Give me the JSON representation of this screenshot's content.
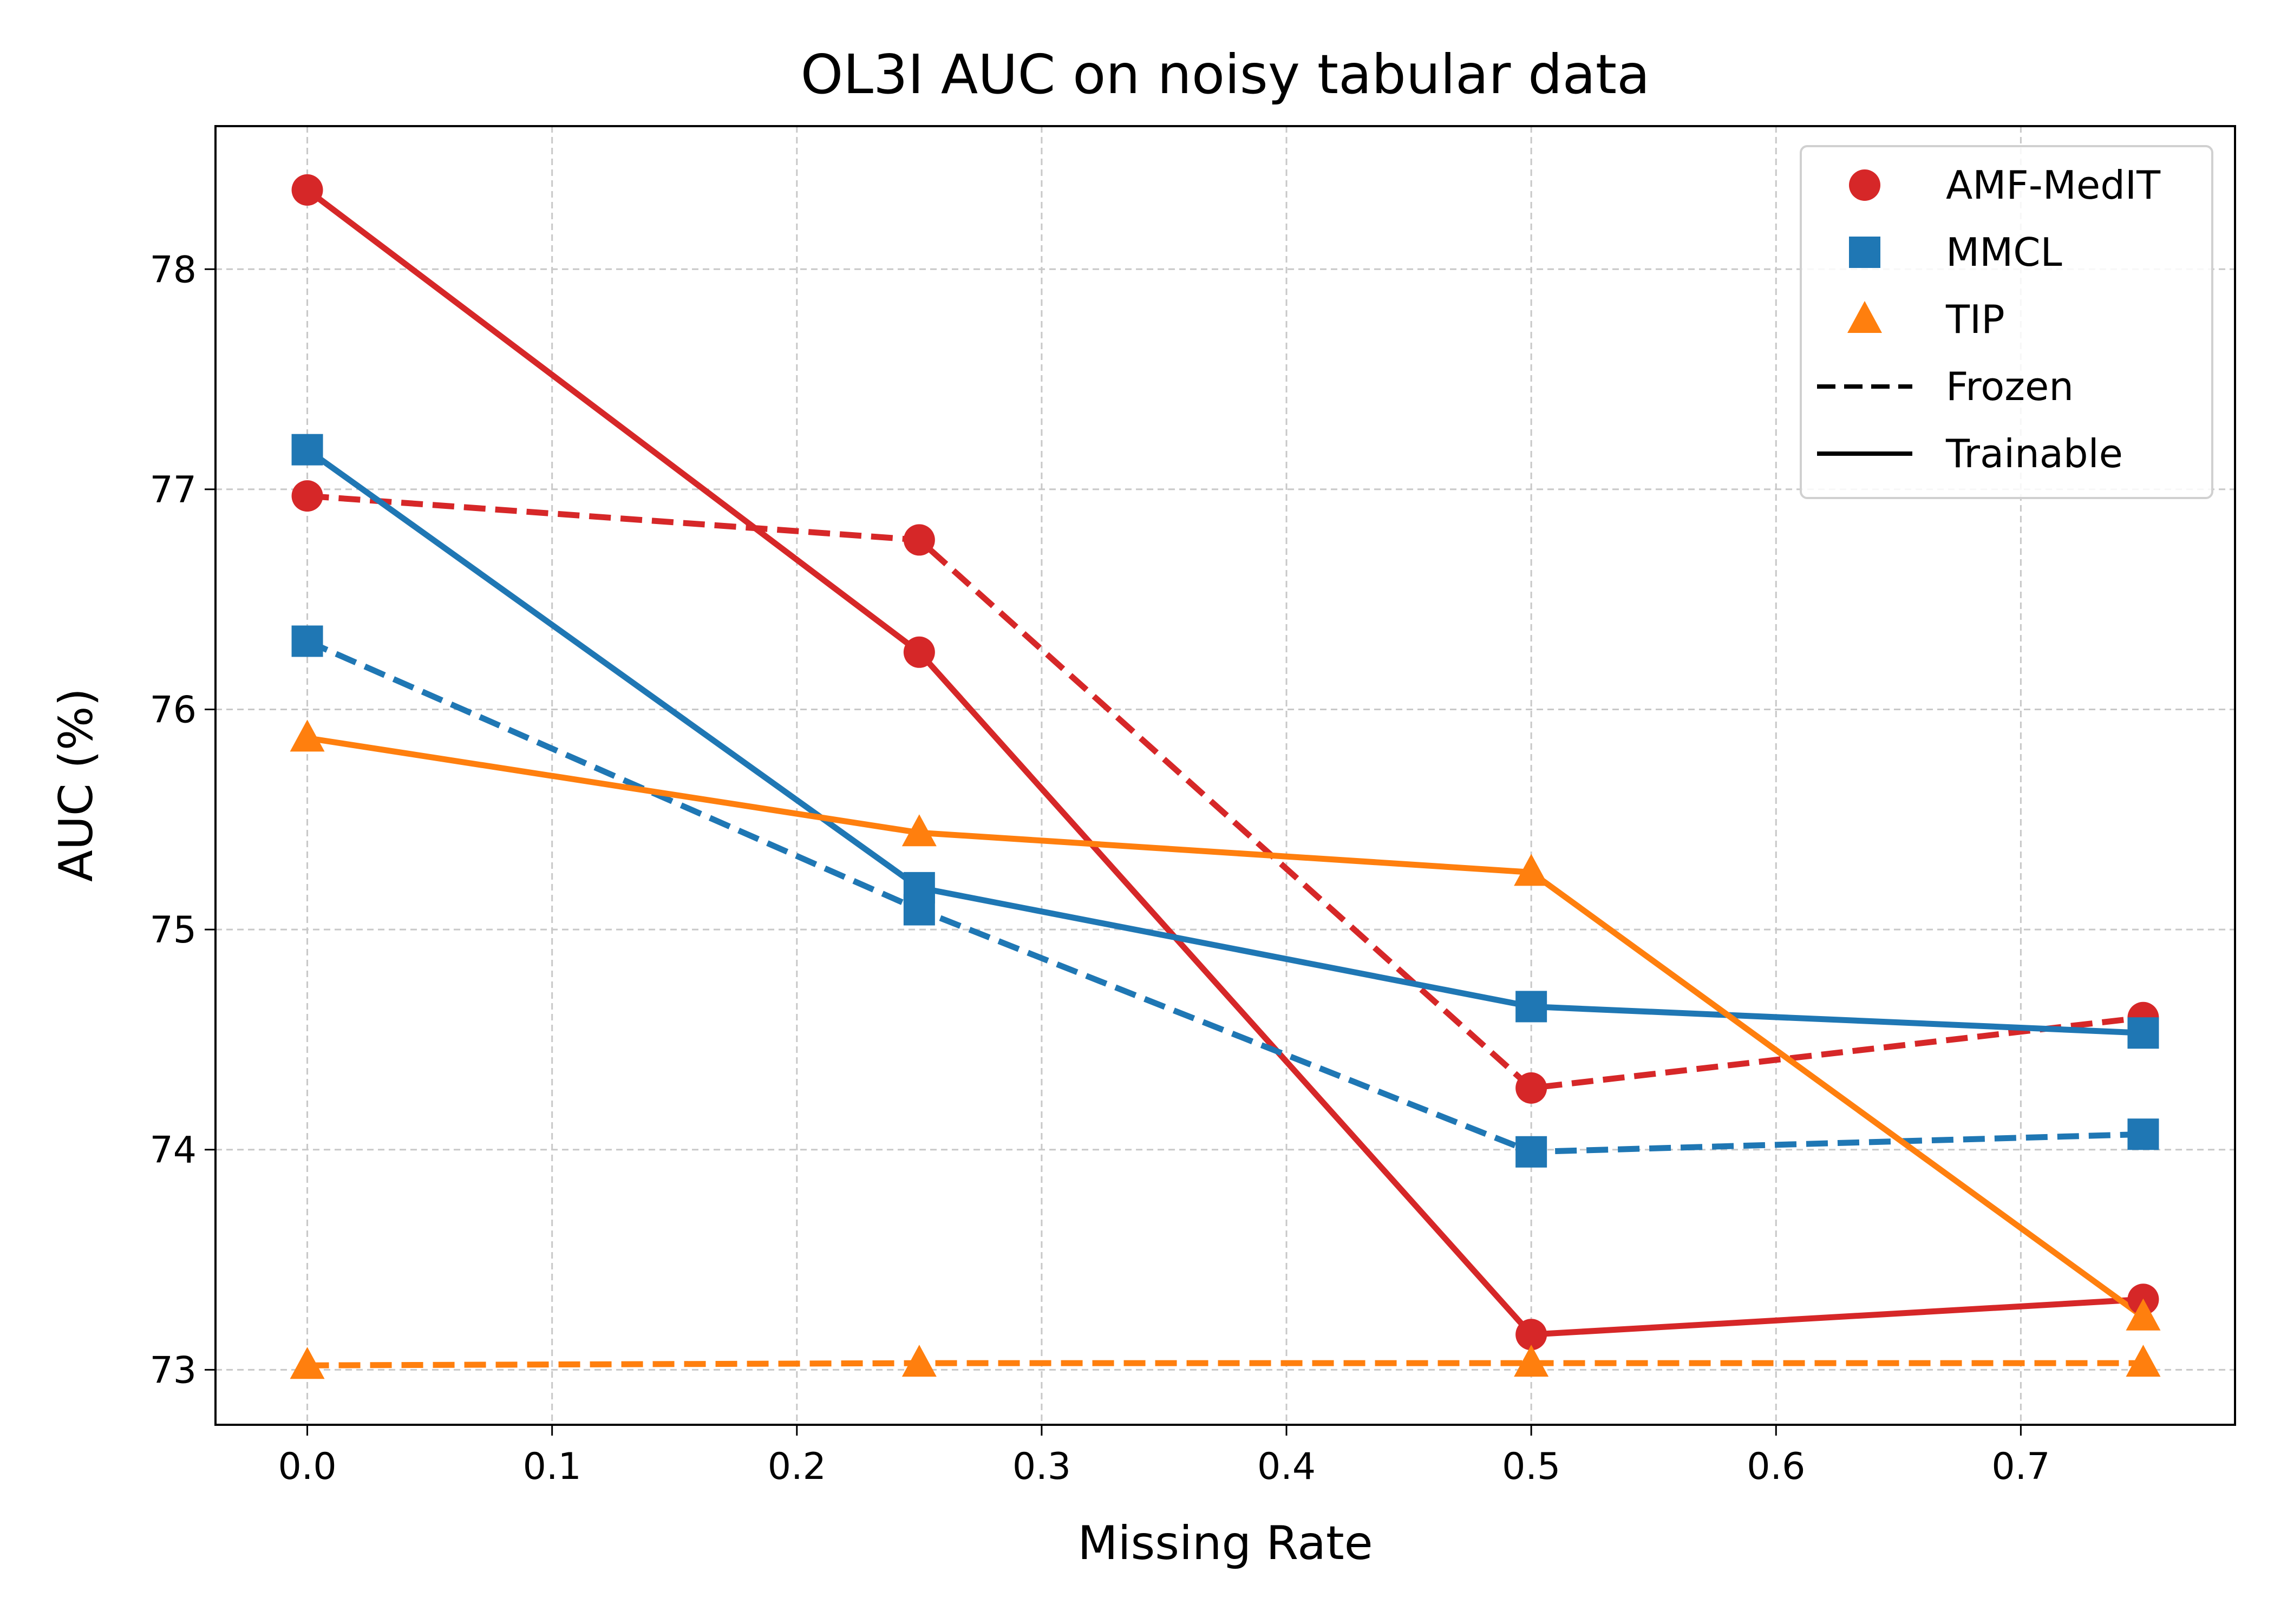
{
  "chart_data": {
    "type": "line",
    "title": "OL3I AUC on noisy tabular data",
    "xlabel": "Missing Rate",
    "ylabel": "AUC (%)",
    "xlim": [
      -0.0375,
      0.7875
    ],
    "ylim": [
      72.75,
      78.65
    ],
    "x_ticks": [
      0.0,
      0.1,
      0.2,
      0.3,
      0.4,
      0.5,
      0.6,
      0.7
    ],
    "x_tick_labels": [
      "0.0",
      "0.1",
      "0.2",
      "0.3",
      "0.4",
      "0.5",
      "0.6",
      "0.7"
    ],
    "y_ticks": [
      73,
      74,
      75,
      76,
      77,
      78
    ],
    "y_tick_labels": [
      "73",
      "74",
      "75",
      "76",
      "77",
      "78"
    ],
    "grid": true,
    "legend_position": "top-right",
    "x": [
      0.0,
      0.25,
      0.5,
      0.75
    ],
    "series": [
      {
        "name": "AMF-MedIT",
        "variant": "Trainable",
        "color": "#d62728",
        "marker": "circle",
        "linestyle": "solid",
        "values": [
          78.36,
          76.26,
          73.16,
          73.32
        ]
      },
      {
        "name": "AMF-MedIT",
        "variant": "Frozen",
        "color": "#d62728",
        "marker": "circle",
        "linestyle": "dashed",
        "values": [
          76.97,
          76.77,
          74.28,
          74.6
        ]
      },
      {
        "name": "MMCL",
        "variant": "Trainable",
        "color": "#1f77b4",
        "marker": "square",
        "linestyle": "solid",
        "values": [
          77.18,
          75.19,
          74.65,
          74.53
        ]
      },
      {
        "name": "MMCL",
        "variant": "Frozen",
        "color": "#1f77b4",
        "marker": "square",
        "linestyle": "dashed",
        "values": [
          76.31,
          75.09,
          73.99,
          74.07
        ]
      },
      {
        "name": "TIP",
        "variant": "Trainable",
        "color": "#ff7f0e",
        "marker": "triangle",
        "linestyle": "solid",
        "values": [
          75.87,
          75.44,
          75.26,
          73.24
        ]
      },
      {
        "name": "TIP",
        "variant": "Frozen",
        "color": "#ff7f0e",
        "marker": "triangle",
        "linestyle": "dashed",
        "values": [
          73.02,
          73.03,
          73.03,
          73.03
        ]
      }
    ],
    "legend": [
      {
        "label": "AMF-MedIT",
        "kind": "marker",
        "marker": "circle",
        "color": "#d62728"
      },
      {
        "label": "MMCL",
        "kind": "marker",
        "marker": "square",
        "color": "#1f77b4"
      },
      {
        "label": "TIP",
        "kind": "marker",
        "marker": "triangle",
        "color": "#ff7f0e"
      },
      {
        "label": "Frozen",
        "kind": "line",
        "linestyle": "dashed",
        "color": "#000000"
      },
      {
        "label": "Trainable",
        "kind": "line",
        "linestyle": "solid",
        "color": "#000000"
      }
    ]
  }
}
